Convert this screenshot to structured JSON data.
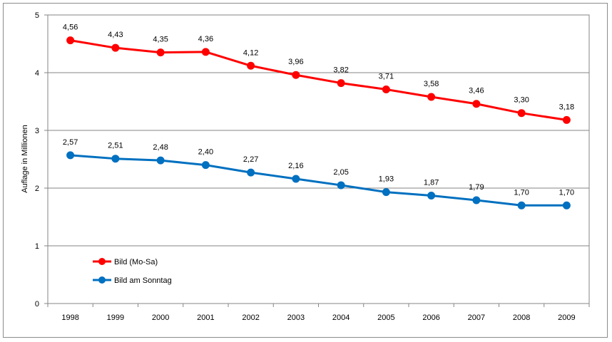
{
  "chart_data": {
    "type": "line",
    "title": "",
    "xlabel": "",
    "ylabel": "Auflage in Millionen",
    "ylim": [
      0,
      5
    ],
    "yticks": [
      "0",
      "1",
      "2",
      "3",
      "4",
      "5"
    ],
    "categories": [
      "1998",
      "1999",
      "2000",
      "2001",
      "2002",
      "2003",
      "2004",
      "2005",
      "2006",
      "2007",
      "2008",
      "2009"
    ],
    "grid": true,
    "legend_position": "bottom-left inside",
    "series": [
      {
        "name": "Bild (Mo-Sa)",
        "color": "#ff0000",
        "values": [
          4.56,
          4.43,
          4.35,
          4.36,
          4.12,
          3.96,
          3.82,
          3.71,
          3.58,
          3.46,
          3.3,
          3.18
        ],
        "labels": [
          "4,56",
          "4,43",
          "4,35",
          "4,36",
          "4,12",
          "3,96",
          "3,82",
          "3,71",
          "3,58",
          "3,46",
          "3,30",
          "3,18"
        ]
      },
      {
        "name": "Bild am Sonntag",
        "color": "#0070c0",
        "values": [
          2.57,
          2.51,
          2.48,
          2.4,
          2.27,
          2.16,
          2.05,
          1.93,
          1.87,
          1.79,
          1.7,
          1.7
        ],
        "labels": [
          "2,57",
          "2,51",
          "2,48",
          "2,40",
          "2,27",
          "2,16",
          "2,05",
          "1,93",
          "1,87",
          "1,79",
          "1,70",
          "1,70"
        ]
      }
    ]
  }
}
